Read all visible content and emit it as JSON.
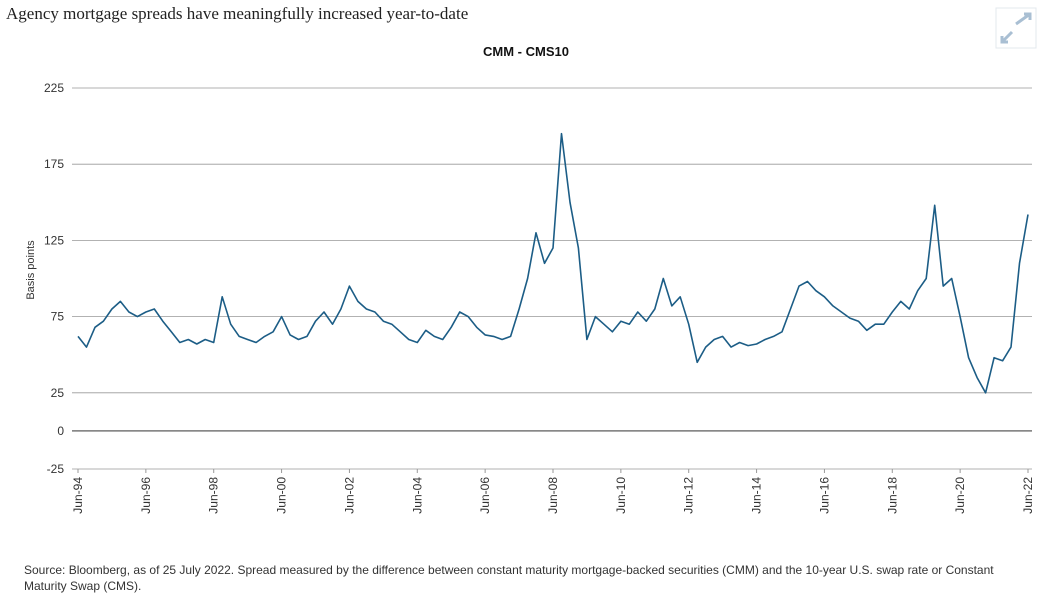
{
  "heading": "Agency mortgage spreads have meaningfully increased year-to-date",
  "chart_data": {
    "type": "line",
    "title": "CMM - CMS10",
    "y_label": "Basis points",
    "color": "#1c5d86",
    "x": [
      "1994-06",
      "1994-09",
      "1994-12",
      "1995-03",
      "1995-06",
      "1995-09",
      "1995-12",
      "1996-03",
      "1996-06",
      "1996-09",
      "1996-12",
      "1997-03",
      "1997-06",
      "1997-09",
      "1997-12",
      "1998-03",
      "1998-06",
      "1998-09",
      "1998-12",
      "1999-03",
      "1999-06",
      "1999-09",
      "1999-12",
      "2000-03",
      "2000-06",
      "2000-09",
      "2000-12",
      "2001-03",
      "2001-06",
      "2001-09",
      "2001-12",
      "2002-03",
      "2002-06",
      "2002-09",
      "2002-12",
      "2003-03",
      "2003-06",
      "2003-09",
      "2003-12",
      "2004-03",
      "2004-06",
      "2004-09",
      "2004-12",
      "2005-03",
      "2005-06",
      "2005-09",
      "2005-12",
      "2006-03",
      "2006-06",
      "2006-09",
      "2006-12",
      "2007-03",
      "2007-06",
      "2007-09",
      "2007-12",
      "2008-03",
      "2008-06",
      "2008-09",
      "2008-12",
      "2009-03",
      "2009-06",
      "2009-09",
      "2009-12",
      "2010-03",
      "2010-06",
      "2010-09",
      "2010-12",
      "2011-03",
      "2011-06",
      "2011-09",
      "2011-12",
      "2012-03",
      "2012-06",
      "2012-09",
      "2012-12",
      "2013-03",
      "2013-06",
      "2013-09",
      "2013-12",
      "2014-03",
      "2014-06",
      "2014-09",
      "2014-12",
      "2015-03",
      "2015-06",
      "2015-09",
      "2015-12",
      "2016-03",
      "2016-06",
      "2016-09",
      "2016-12",
      "2017-03",
      "2017-06",
      "2017-09",
      "2017-12",
      "2018-03",
      "2018-06",
      "2018-09",
      "2018-12",
      "2019-03",
      "2019-06",
      "2019-09",
      "2019-12",
      "2020-03",
      "2020-06",
      "2020-09",
      "2020-12",
      "2021-03",
      "2021-06",
      "2021-09",
      "2021-12",
      "2022-03",
      "2022-06"
    ],
    "values": [
      62,
      55,
      68,
      72,
      80,
      85,
      78,
      75,
      78,
      80,
      72,
      65,
      58,
      60,
      57,
      60,
      58,
      88,
      70,
      62,
      60,
      58,
      62,
      65,
      75,
      63,
      60,
      62,
      72,
      78,
      70,
      80,
      95,
      85,
      80,
      78,
      72,
      70,
      65,
      60,
      58,
      66,
      62,
      60,
      68,
      78,
      75,
      68,
      63,
      62,
      60,
      62,
      80,
      100,
      130,
      110,
      120,
      195,
      150,
      120,
      60,
      75,
      70,
      65,
      72,
      70,
      78,
      72,
      80,
      100,
      82,
      88,
      70,
      45,
      55,
      60,
      62,
      55,
      58,
      56,
      57,
      60,
      62,
      65,
      80,
      95,
      98,
      92,
      88,
      82,
      78,
      74,
      72,
      66,
      70,
      70,
      78,
      85,
      80,
      92,
      100,
      148,
      95,
      100,
      75,
      48,
      35,
      25,
      48,
      46,
      55,
      110,
      142
    ],
    "xlim": [
      "1994-06",
      "2022-06"
    ],
    "xticks": [
      {
        "value": "1994-06",
        "label": "Jun-94"
      },
      {
        "value": "1996-06",
        "label": "Jun-96"
      },
      {
        "value": "1998-06",
        "label": "Jun-98"
      },
      {
        "value": "2000-06",
        "label": "Jun-00"
      },
      {
        "value": "2002-06",
        "label": "Jun-02"
      },
      {
        "value": "2004-06",
        "label": "Jun-04"
      },
      {
        "value": "2006-06",
        "label": "Jun-06"
      },
      {
        "value": "2008-06",
        "label": "Jun-08"
      },
      {
        "value": "2010-06",
        "label": "Jun-10"
      },
      {
        "value": "2012-06",
        "label": "Jun-12"
      },
      {
        "value": "2014-06",
        "label": "Jun-14"
      },
      {
        "value": "2016-06",
        "label": "Jun-16"
      },
      {
        "value": "2018-06",
        "label": "Jun-18"
      },
      {
        "value": "2020-06",
        "label": "Jun-20"
      },
      {
        "value": "2022-06",
        "label": "Jun-22"
      }
    ],
    "ylim": [
      -25,
      225
    ],
    "yticks": [
      -25,
      0,
      25,
      75,
      125,
      175,
      225
    ],
    "grid": true
  },
  "source": "Source: Bloomberg, as of 25 July 2022. Spread measured by the difference between constant maturity mortgage-backed securities (CMM) and the 10-year U.S. swap rate or Constant Maturity Swap (CMS)."
}
